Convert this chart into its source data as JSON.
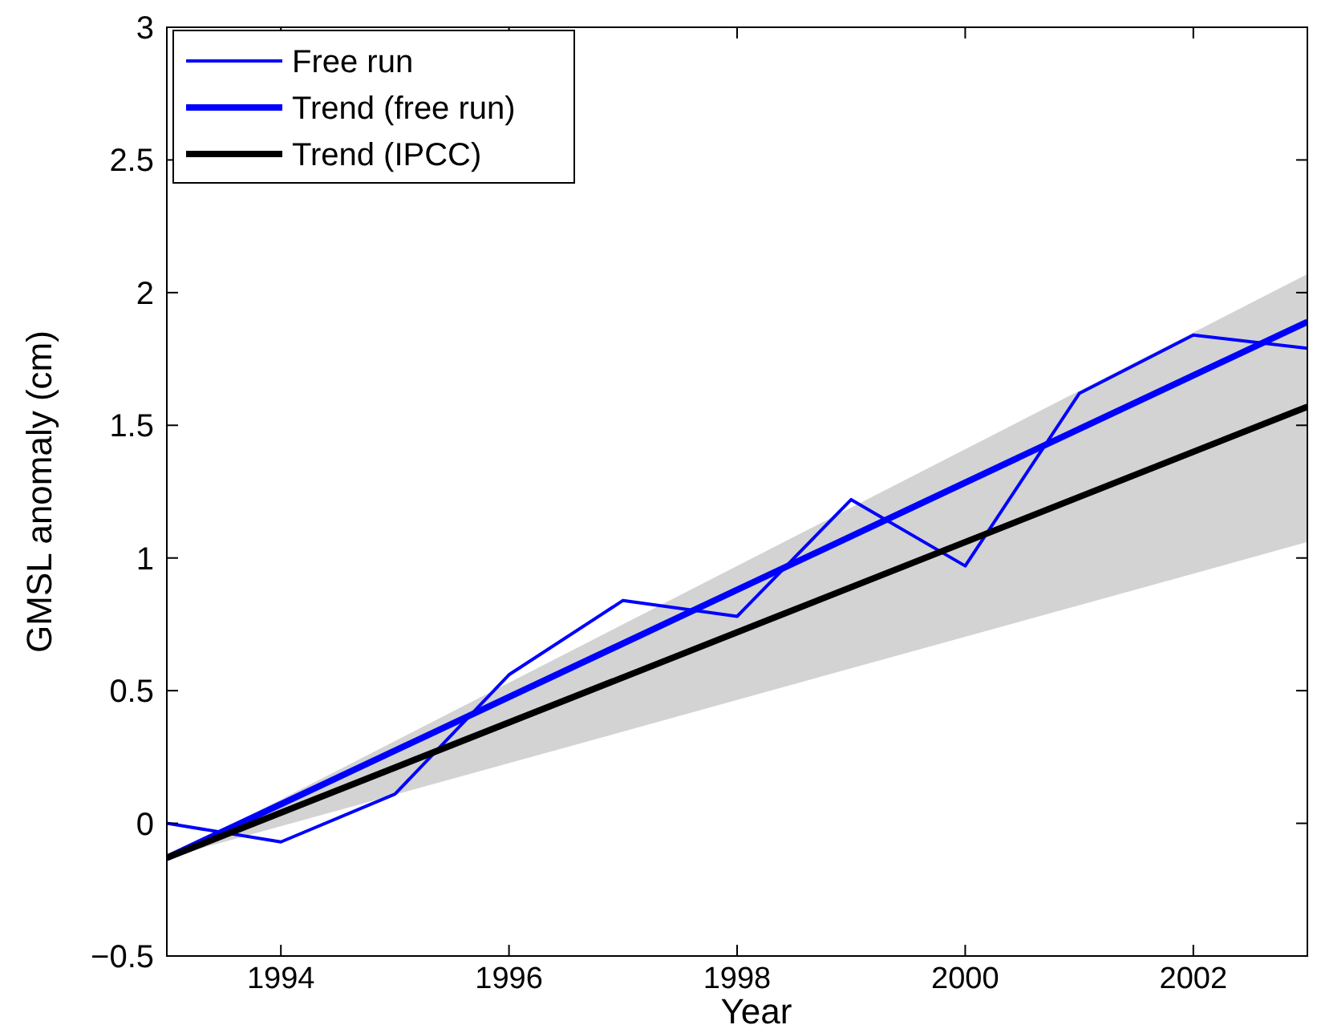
{
  "chart_data": {
    "type": "line",
    "xlabel": "Year",
    "ylabel": "GMSL anomaly (cm)",
    "xlim": [
      1993,
      2003
    ],
    "xticks": [
      1994,
      1996,
      1998,
      2000,
      2002
    ],
    "ylim": [
      -0.5,
      3
    ],
    "yticks": [
      {
        "value": -0.5,
        "label": "−0.5"
      },
      0,
      0.5,
      1,
      1.5,
      2,
      2.5,
      3
    ],
    "legend": "top left",
    "grid": false,
    "series": [
      {
        "name": "Free run",
        "color": "#0000ff",
        "x": [
          1993,
          1994,
          1995,
          1996,
          1997,
          1998,
          1999,
          2000,
          2001,
          2002,
          2003
        ],
        "values": [
          0,
          -0.07,
          0.11,
          0.56,
          0.84,
          0.78,
          1.22,
          0.97,
          1.62,
          1.84,
          1.79
        ]
      },
      {
        "name": "Trend (free run)",
        "color": "#0000ff",
        "x": [
          1993,
          2003
        ],
        "values": [
          -0.13,
          1.89
        ]
      },
      {
        "name": "Trend (IPCC)",
        "color": "#000000",
        "x": [
          1993,
          2003
        ],
        "values": [
          -0.13,
          1.57
        ],
        "lower": [
          -0.13,
          1.06
        ],
        "upper": [
          -0.13,
          2.07
        ]
      }
    ]
  }
}
